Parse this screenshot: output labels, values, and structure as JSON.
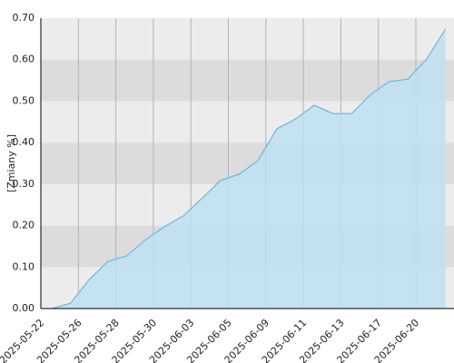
{
  "chart_data": {
    "type": "area",
    "y_label": "[Zmiany %]",
    "categories": [
      "2025-05-22",
      null,
      "2025-05-26",
      null,
      "2025-05-28",
      null,
      "2025-05-30",
      null,
      "2025-06-03",
      null,
      "2025-06-05",
      null,
      "2025-06-09",
      null,
      "2025-06-11",
      null,
      "2025-06-13",
      null,
      "2025-06-17",
      null,
      "2025-06-20",
      null
    ],
    "values": [
      0.0,
      0.013,
      0.07,
      0.114,
      0.127,
      0.166,
      0.197,
      0.223,
      0.265,
      0.309,
      0.324,
      0.357,
      0.433,
      0.457,
      0.49,
      0.47,
      0.47,
      0.516,
      0.547,
      0.553,
      0.602,
      0.674
    ],
    "color": "#bde0f0",
    "line_color": "#5aaee0",
    "band_colors": [
      "#ececec",
      "#dcdcdc"
    ],
    "ylim": [
      0,
      0.7
    ],
    "yticks": [
      {
        "value": 0,
        "label": "0.00"
      },
      {
        "value": 0.1,
        "label": "0.10"
      },
      {
        "value": 0.2,
        "label": "0.20"
      },
      {
        "value": 0.3,
        "label": "0.30"
      },
      {
        "value": 0.4,
        "label": "0.40"
      },
      {
        "value": 0.5,
        "label": "0.50"
      },
      {
        "value": 0.6,
        "label": "0.60"
      },
      {
        "value": 0.7,
        "label": "0.70"
      }
    ],
    "grid": true
  }
}
